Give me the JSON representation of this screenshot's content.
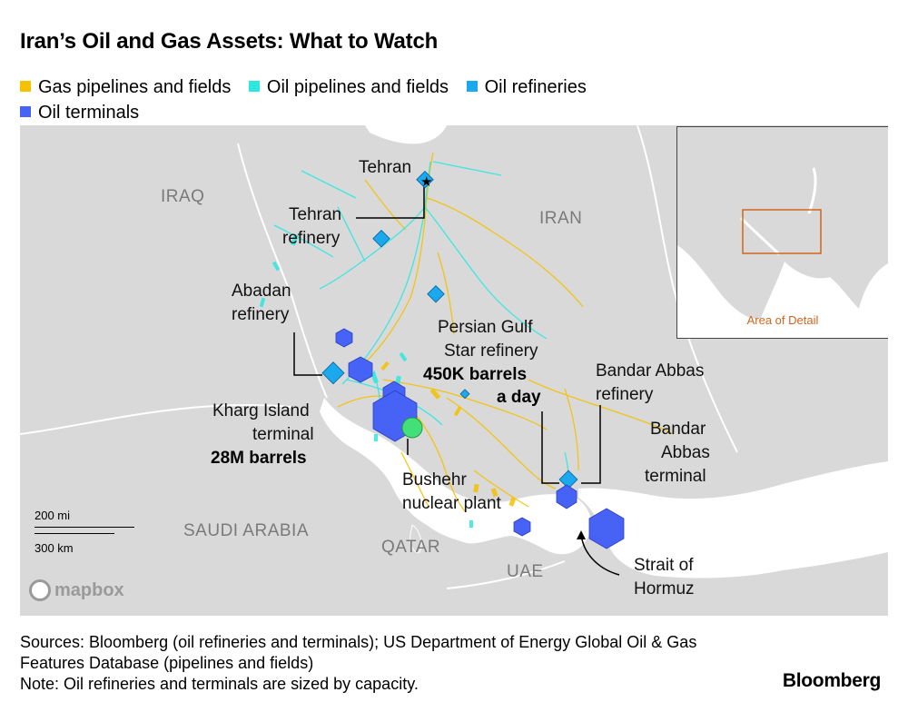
{
  "title": "Iran’s Oil and Gas Assets: What to Watch",
  "legend": [
    {
      "label": "Gas pipelines and fields",
      "color": "#f5c100"
    },
    {
      "label": "Oil pipelines and fields",
      "color": "#2ee8e0"
    },
    {
      "label": "Oil refineries",
      "color": "#1aa9ec"
    },
    {
      "label": "Oil terminals",
      "color": "#4763f5"
    }
  ],
  "countries": {
    "iraq": "IRAQ",
    "iran": "IRAN",
    "saudi": "SAUDI ARABIA",
    "qatar": "QATAR",
    "uae": "UAE"
  },
  "callouts": {
    "tehran": "Tehran",
    "tehran_refinery_1": "Tehran",
    "tehran_refinery_2": "refinery",
    "abadan_1": "Abadan",
    "abadan_2": "refinery",
    "psgs_1": "Persian Gulf",
    "psgs_2": "Star refinery",
    "psgs_3": "450K barrels",
    "psgs_4": "a day",
    "kharg_1": "Kharg Island",
    "kharg_2": "terminal",
    "kharg_3": "28M barrels",
    "bushehr_1": "Bushehr",
    "bushehr_2": "nuclear plant",
    "ba_ref_1": "Bandar Abbas",
    "ba_ref_2": "refinery",
    "ba_term_1": "Bandar",
    "ba_term_2": "Abbas",
    "ba_term_3": "terminal",
    "hormuz_1": "Strait of",
    "hormuz_2": "Hormuz"
  },
  "inset": {
    "label": "Area of Detail"
  },
  "scale": {
    "miles": "200 mi",
    "km": "300 km"
  },
  "attribution": "mapbox",
  "footer": {
    "sources": "Sources: Bloomberg (oil refineries and terminals); US Department of Energy Global Oil & Gas Features Database (pipelines and fields)",
    "note": "Note: Oil refineries and terminals are sized by capacity."
  },
  "brand": "Bloomberg",
  "colors": {
    "land": "#d9d9d9",
    "water": "#ffffff",
    "nuclear": "#43e07a",
    "accent_inset": "#d2651d"
  }
}
